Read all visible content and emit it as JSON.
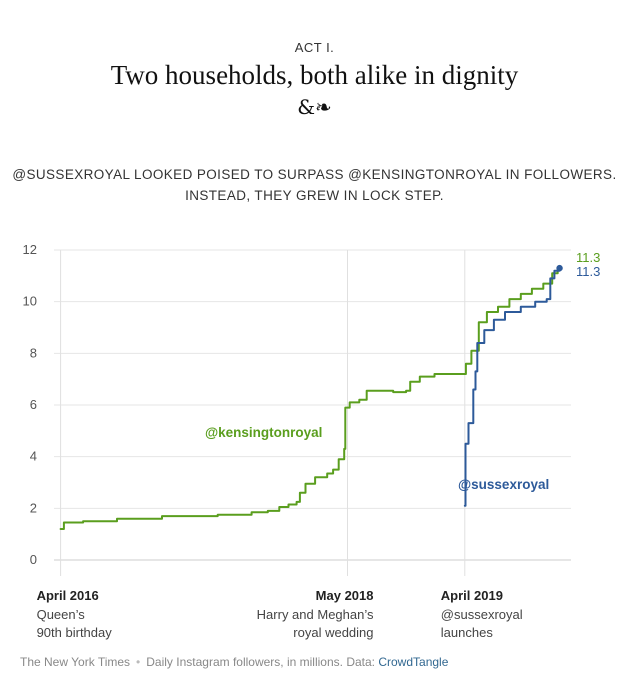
{
  "header": {
    "act": "ACT I.",
    "title": "Two households, both alike in dignity",
    "ornament": "&❧",
    "subhead_line1": "@SUSSEXROYAL LOOKED POISED TO SURPASS @KENSINGTONROYAL IN FOLLOWERS.",
    "subhead_line2": "INSTEAD, THEY GREW IN LOCK STEP."
  },
  "chart_data": {
    "type": "line",
    "xlim": [
      "2016-03-25",
      "2020-01-15"
    ],
    "ylim": [
      0,
      12
    ],
    "yticks": [
      0,
      2,
      4,
      6,
      8,
      10,
      12
    ],
    "grid": true,
    "colors": {
      "kensingtonroyal": "#5a9e1e",
      "sussexroyal": "#2d5a9a"
    },
    "series": [
      {
        "name": "@kensingtonroyal",
        "color": "#5a9e1e",
        "points": [
          [
            "2016-04-01",
            1.2
          ],
          [
            "2016-04-10",
            1.45
          ],
          [
            "2016-06-01",
            1.5
          ],
          [
            "2016-09-01",
            1.6
          ],
          [
            "2017-01-01",
            1.7
          ],
          [
            "2017-06-01",
            1.75
          ],
          [
            "2017-09-01",
            1.85
          ],
          [
            "2017-10-15",
            1.9
          ],
          [
            "2017-11-15",
            2.05
          ],
          [
            "2017-12-10",
            2.15
          ],
          [
            "2018-01-01",
            2.25
          ],
          [
            "2018-01-10",
            2.6
          ],
          [
            "2018-01-25",
            2.95
          ],
          [
            "2018-02-20",
            3.2
          ],
          [
            "2018-03-25",
            3.35
          ],
          [
            "2018-04-10",
            3.5
          ],
          [
            "2018-04-25",
            3.9
          ],
          [
            "2018-05-10",
            4.3
          ],
          [
            "2018-05-13",
            5.9
          ],
          [
            "2018-05-25",
            6.1
          ],
          [
            "2018-06-20",
            6.2
          ],
          [
            "2018-07-10",
            6.55
          ],
          [
            "2018-08-20",
            6.55
          ],
          [
            "2018-09-20",
            6.5
          ],
          [
            "2018-10-25",
            6.55
          ],
          [
            "2018-11-05",
            6.9
          ],
          [
            "2018-12-01",
            7.1
          ],
          [
            "2019-01-10",
            7.2
          ],
          [
            "2019-03-20",
            7.2
          ],
          [
            "2019-04-01",
            7.2
          ],
          [
            "2019-04-05",
            7.6
          ],
          [
            "2019-04-20",
            8.1
          ],
          [
            "2019-05-10",
            9.2
          ],
          [
            "2019-06-01",
            9.6
          ],
          [
            "2019-07-01",
            9.8
          ],
          [
            "2019-08-01",
            10.1
          ],
          [
            "2019-09-01",
            10.3
          ],
          [
            "2019-10-01",
            10.5
          ],
          [
            "2019-11-01",
            10.7
          ],
          [
            "2019-11-25",
            11.1
          ],
          [
            "2019-12-10",
            11.3
          ]
        ],
        "label": "@kensingtonroyal",
        "end_value": "11.3"
      },
      {
        "name": "@sussexroyal",
        "color": "#2d5a9a",
        "points": [
          [
            "2019-04-02",
            2.1
          ],
          [
            "2019-04-04",
            4.5
          ],
          [
            "2019-04-12",
            5.3
          ],
          [
            "2019-04-25",
            6.6
          ],
          [
            "2019-05-01",
            7.3
          ],
          [
            "2019-05-06",
            8.4
          ],
          [
            "2019-05-25",
            8.9
          ],
          [
            "2019-06-20",
            9.3
          ],
          [
            "2019-07-20",
            9.6
          ],
          [
            "2019-09-01",
            9.8
          ],
          [
            "2019-10-10",
            10.0
          ],
          [
            "2019-11-10",
            10.1
          ],
          [
            "2019-11-20",
            10.9
          ],
          [
            "2019-12-01",
            11.2
          ],
          [
            "2019-12-15",
            11.3
          ]
        ],
        "label": "@sussexroyal",
        "end_value": "11.3"
      }
    ],
    "annotations": [
      {
        "date": "2016-04-01",
        "title": "April 2016",
        "line1": "Queen’s",
        "line2": "90th birthday",
        "align": "start"
      },
      {
        "date": "2018-05-19",
        "title": "May 2018",
        "line1": "Harry and Meghan’s",
        "line2": "royal wedding",
        "align": "end"
      },
      {
        "date": "2019-04-02",
        "title": "April 2019",
        "line1": "@sussexroyal",
        "line2": "launches",
        "align": "start"
      }
    ]
  },
  "footer": {
    "publisher": "The New York Times",
    "separator": "•",
    "note": "Daily Instagram followers, in millions. Data:",
    "source": "CrowdTangle"
  }
}
